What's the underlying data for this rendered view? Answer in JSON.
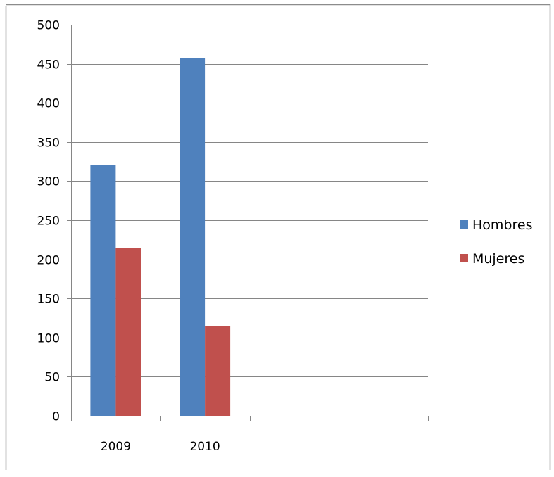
{
  "chart_data": {
    "type": "bar",
    "categories": [
      "2009",
      "2010",
      "",
      ""
    ],
    "series": [
      {
        "name": "Hombres",
        "values": [
          321,
          457,
          null,
          null
        ]
      },
      {
        "name": "Mujeres",
        "values": [
          214,
          115,
          null,
          null
        ]
      }
    ],
    "ylim": [
      0,
      500
    ],
    "yticks": [
      0,
      50,
      100,
      150,
      200,
      250,
      300,
      350,
      400,
      450,
      500
    ],
    "grid": true,
    "legend_position": "right",
    "colors": {
      "Hombres": "#4f81bd",
      "Mujeres": "#c0504d",
      "grid": "#868686",
      "frame": "#7f7f7f"
    }
  }
}
